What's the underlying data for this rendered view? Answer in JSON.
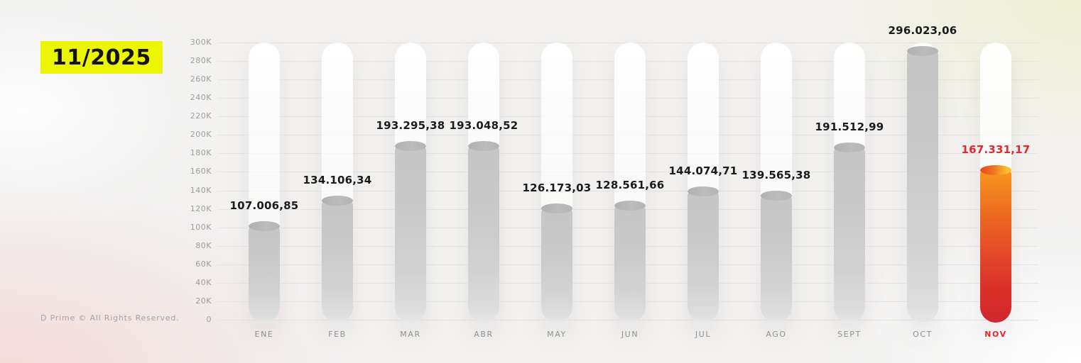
{
  "badge": {
    "label": "11/2025",
    "bg_color": "#ecf502",
    "text_color": "#141414"
  },
  "footer": {
    "copyright": "D Prime © All Rights Reserved."
  },
  "chart_data": {
    "type": "bar",
    "title": "",
    "xlabel": "",
    "ylabel": "",
    "categories": [
      "ENE",
      "FEB",
      "MAR",
      "ABR",
      "MAY",
      "JUN",
      "JUL",
      "AGO",
      "SEPT",
      "OCT",
      "NOV"
    ],
    "values": [
      107006.85,
      134106.34,
      193295.38,
      193048.52,
      126173.03,
      128561.66,
      144074.71,
      139565.38,
      191512.99,
      296023.06,
      167331.17
    ],
    "value_labels": [
      "107.006,85",
      "134.106,34",
      "193.295,38",
      "193.048,52",
      "126.173,03",
      "128.561,66",
      "144.074,71",
      "139.565,38",
      "191.512,99",
      "296.023,06",
      "167.331,17"
    ],
    "y_ticks": [
      "0",
      "20K",
      "40K",
      "60K",
      "80K",
      "100K",
      "120K",
      "140K",
      "160K",
      "180K",
      "200K",
      "220K",
      "240K",
      "260K",
      "280K",
      "300K"
    ],
    "ylim": [
      0,
      300000
    ],
    "grid": true,
    "legend": false,
    "highlight_index": 10,
    "highlight_color": "#e8262b",
    "bar_color": "#c9c9c9"
  }
}
